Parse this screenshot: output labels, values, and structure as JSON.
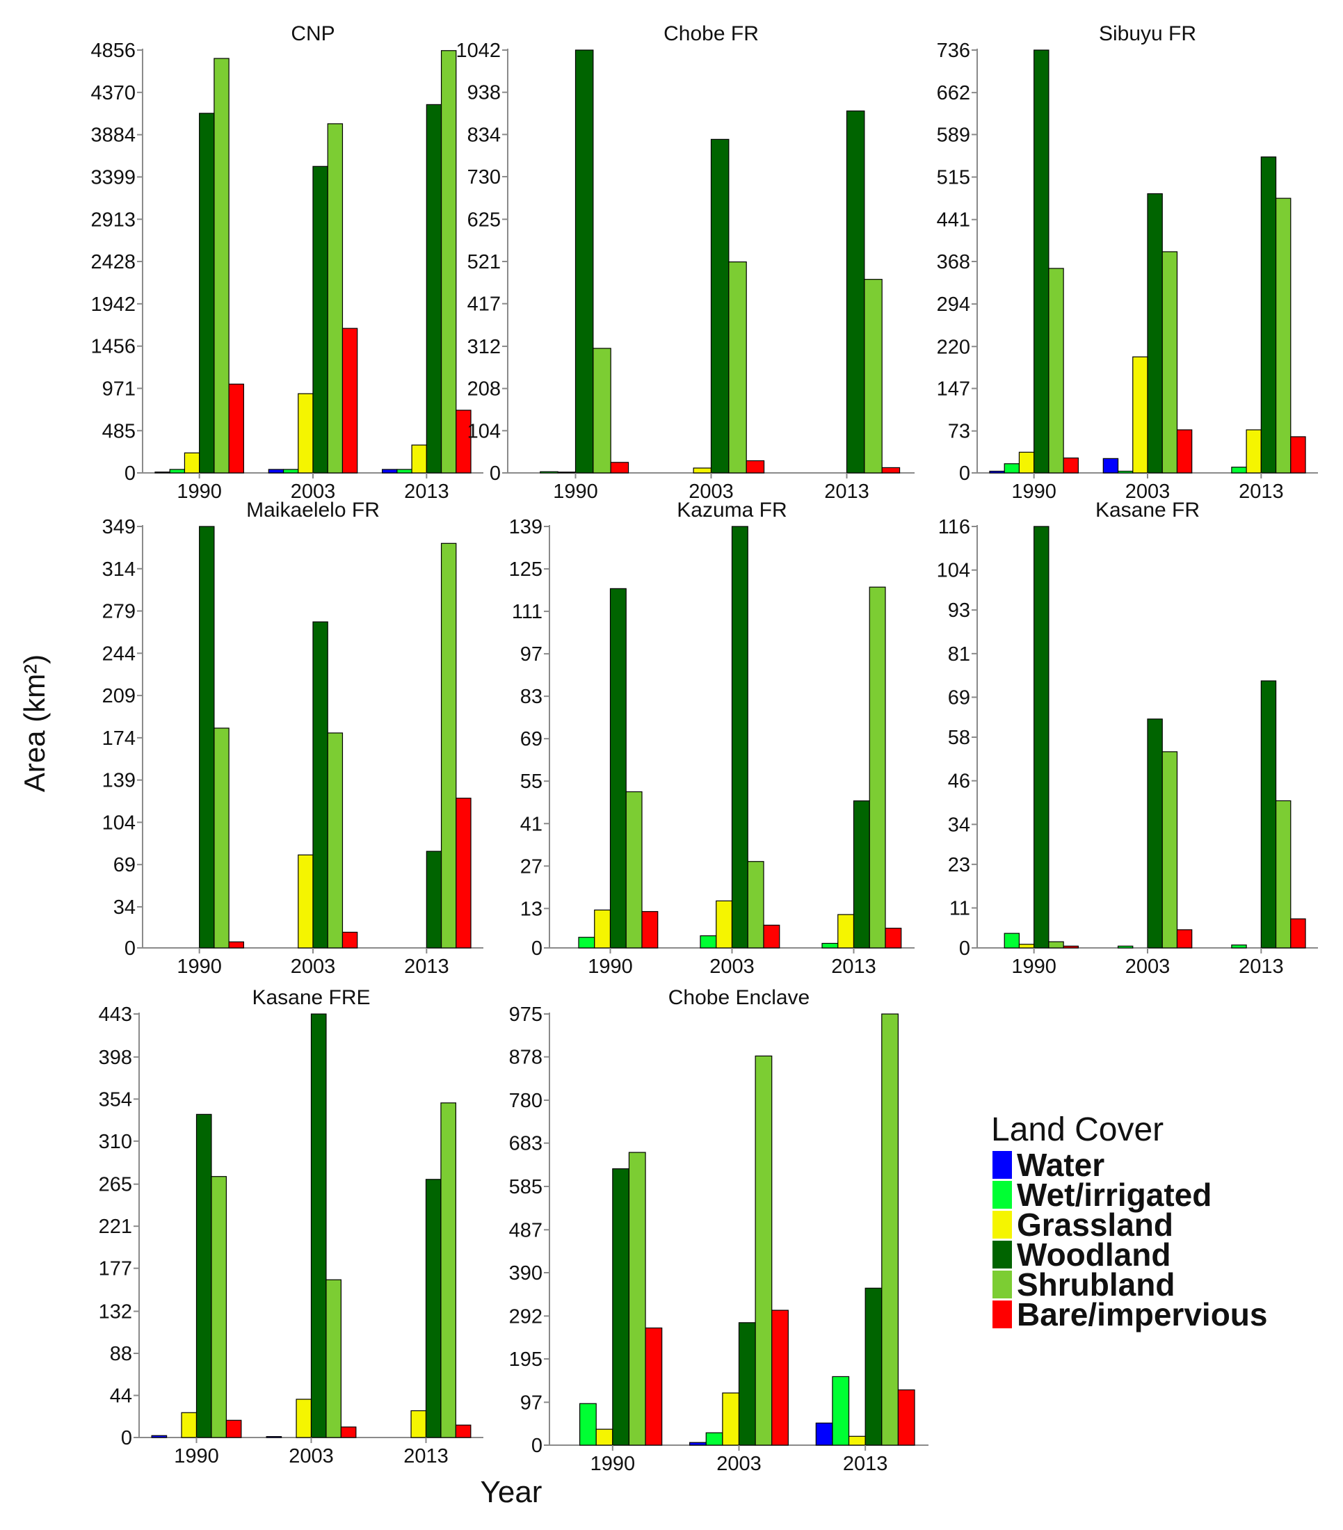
{
  "chart_data": {
    "type": "bar",
    "ylabel": "Area (km²)",
    "xlabel": "Year",
    "legend": {
      "title": "Land Cover",
      "placement": "lower-right",
      "items": [
        {
          "name": "Water",
          "color": "#0000ff"
        },
        {
          "name": "Wet/irrigated",
          "color": "#00ff33"
        },
        {
          "name": "Grassland",
          "color": "#f5f500"
        },
        {
          "name": "Woodland",
          "color": "#006400"
        },
        {
          "name": "Shrubland",
          "color": "#7ccd33"
        },
        {
          "name": "Bare/impervious",
          "color": "#ff0000"
        }
      ]
    },
    "panels": [
      {
        "title": "CNP",
        "categories": [
          "1990",
          "2003",
          "2013"
        ],
        "yticks": [
          "0",
          "485",
          "971",
          "1456",
          "1942",
          "2428",
          "2913",
          "3399",
          "3884",
          "4370",
          "4856"
        ],
        "ylim": [
          0,
          4856
        ],
        "series": [
          {
            "name": "Water",
            "values": [
              10,
              40,
              40
            ]
          },
          {
            "name": "Wet/irrigated",
            "values": [
              40,
              40,
              40
            ]
          },
          {
            "name": "Grassland",
            "values": [
              230,
              910,
              320
            ]
          },
          {
            "name": "Woodland",
            "values": [
              4130,
              3520,
              4230
            ]
          },
          {
            "name": "Shrubland",
            "values": [
              4760,
              4010,
              4850
            ]
          },
          {
            "name": "Bare/impervious",
            "values": [
              1020,
              1660,
              720
            ]
          }
        ]
      },
      {
        "title": "Chobe FR",
        "categories": [
          "1990",
          "2003",
          "2013"
        ],
        "yticks": [
          "0",
          "104",
          "208",
          "312",
          "417",
          "521",
          "625",
          "730",
          "834",
          "938",
          "1042"
        ],
        "ylim": [
          0,
          1042
        ],
        "series": [
          {
            "name": "Water",
            "values": [
              0,
              0,
              0
            ]
          },
          {
            "name": "Wet/irrigated",
            "values": [
              3,
              0,
              0
            ]
          },
          {
            "name": "Grassland",
            "values": [
              2,
              12,
              0
            ]
          },
          {
            "name": "Woodland",
            "values": [
              1042,
              822,
              892
            ]
          },
          {
            "name": "Shrubland",
            "values": [
              307,
              520,
              477
            ]
          },
          {
            "name": "Bare/impervious",
            "values": [
              26,
              30,
              13
            ]
          }
        ]
      },
      {
        "title": "Sibuyu FR",
        "categories": [
          "1990",
          "2003",
          "2013"
        ],
        "yticks": [
          "0",
          "73",
          "147",
          "220",
          "294",
          "368",
          "441",
          "515",
          "589",
          "662",
          "736"
        ],
        "ylim": [
          0,
          736
        ],
        "series": [
          {
            "name": "Water",
            "values": [
              3,
              25,
              0
            ]
          },
          {
            "name": "Wet/irrigated",
            "values": [
              16,
              3,
              10
            ]
          },
          {
            "name": "Grassland",
            "values": [
              36,
              202,
              75
            ]
          },
          {
            "name": "Woodland",
            "values": [
              736,
              486,
              550
            ]
          },
          {
            "name": "Shrubland",
            "values": [
              356,
              385,
              478
            ]
          },
          {
            "name": "Bare/impervious",
            "values": [
              26,
              75,
              63
            ]
          }
        ]
      },
      {
        "title": "Maikaelelo FR",
        "categories": [
          "1990",
          "2003",
          "2013"
        ],
        "yticks": [
          "0",
          "34",
          "69",
          "104",
          "139",
          "174",
          "209",
          "244",
          "279",
          "314",
          "349"
        ],
        "ylim": [
          0,
          349
        ],
        "series": [
          {
            "name": "Water",
            "values": [
              0,
              0,
              0
            ]
          },
          {
            "name": "Wet/irrigated",
            "values": [
              0,
              0,
              0
            ]
          },
          {
            "name": "Grassland",
            "values": [
              0,
              77,
              0
            ]
          },
          {
            "name": "Woodland",
            "values": [
              349,
              270,
              80
            ]
          },
          {
            "name": "Shrubland",
            "values": [
              182,
              178,
              335
            ]
          },
          {
            "name": "Bare/impervious",
            "values": [
              5,
              13,
              124
            ]
          }
        ]
      },
      {
        "title": "Kazuma FR",
        "categories": [
          "1990",
          "2003",
          "2013"
        ],
        "yticks": [
          "0",
          "13",
          "27",
          "41",
          "55",
          "69",
          "83",
          "97",
          "111",
          "125",
          "139"
        ],
        "ylim": [
          0,
          139
        ],
        "series": [
          {
            "name": "Water",
            "values": [
              0,
              0,
              0
            ]
          },
          {
            "name": "Wet/irrigated",
            "values": [
              3.5,
              4,
              1.5
            ]
          },
          {
            "name": "Grassland",
            "values": [
              12.5,
              15.5,
              11
            ]
          },
          {
            "name": "Woodland",
            "values": [
              118.5,
              139,
              48.5
            ]
          },
          {
            "name": "Shrubland",
            "values": [
              51.5,
              28.5,
              119
            ]
          },
          {
            "name": "Bare/impervious",
            "values": [
              12,
              7.5,
              6.5
            ]
          }
        ]
      },
      {
        "title": "Kasane FR",
        "categories": [
          "1990",
          "2003",
          "2013"
        ],
        "yticks": [
          "0",
          "11",
          "23",
          "34",
          "46",
          "58",
          "69",
          "81",
          "93",
          "104",
          "116"
        ],
        "ylim": [
          0,
          116
        ],
        "series": [
          {
            "name": "Water",
            "values": [
              0,
              0,
              0
            ]
          },
          {
            "name": "Wet/irrigated",
            "values": [
              4,
              0.5,
              0.8
            ]
          },
          {
            "name": "Grassland",
            "values": [
              1,
              0,
              0
            ]
          },
          {
            "name": "Woodland",
            "values": [
              116,
              63,
              73.5
            ]
          },
          {
            "name": "Shrubland",
            "values": [
              1.7,
              54,
              40.5
            ]
          },
          {
            "name": "Bare/impervious",
            "values": [
              0.5,
              5,
              8
            ]
          }
        ]
      },
      {
        "title": "Kasane FRE",
        "categories": [
          "1990",
          "2003",
          "2013"
        ],
        "yticks": [
          "0",
          "44",
          "88",
          "132",
          "177",
          "221",
          "265",
          "310",
          "354",
          "398",
          "443"
        ],
        "ylim": [
          0,
          443
        ],
        "series": [
          {
            "name": "Water",
            "values": [
              2,
              1,
              0
            ]
          },
          {
            "name": "Wet/irrigated",
            "values": [
              0,
              0,
              0
            ]
          },
          {
            "name": "Grassland",
            "values": [
              26,
              40,
              28
            ]
          },
          {
            "name": "Woodland",
            "values": [
              338,
              443,
              270
            ]
          },
          {
            "name": "Shrubland",
            "values": [
              273,
              165,
              350
            ]
          },
          {
            "name": "Bare/impervious",
            "values": [
              18,
              11,
              13
            ]
          }
        ]
      },
      {
        "title": "Chobe Enclave",
        "categories": [
          "1990",
          "2003",
          "2013"
        ],
        "yticks": [
          "0",
          "97",
          "195",
          "292",
          "390",
          "487",
          "585",
          "683",
          "780",
          "878",
          "975"
        ],
        "ylim": [
          0,
          975
        ],
        "series": [
          {
            "name": "Water",
            "values": [
              0,
              6,
              50
            ]
          },
          {
            "name": "Wet/irrigated",
            "values": [
              94,
              28,
              155
            ]
          },
          {
            "name": "Grassland",
            "values": [
              36,
              118,
              20
            ]
          },
          {
            "name": "Woodland",
            "values": [
              625,
              277,
              355
            ]
          },
          {
            "name": "Shrubland",
            "values": [
              662,
              880,
              975
            ]
          },
          {
            "name": "Bare/impervious",
            "values": [
              265,
              305,
              125
            ]
          }
        ]
      }
    ]
  }
}
